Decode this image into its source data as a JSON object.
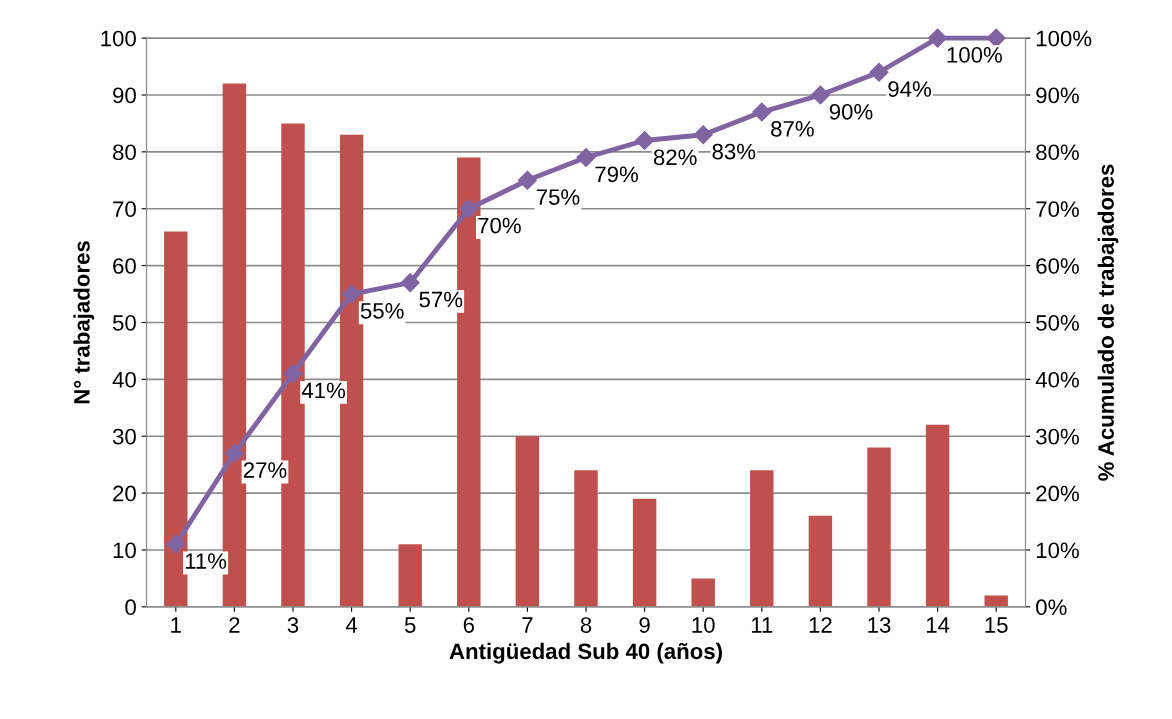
{
  "chart_data": {
    "type": "bar",
    "xlabel": "Antigüedad Sub 40 (años)",
    "ylabel": "N° trabajadores",
    "y2label": "% Acumulado de trabajadores",
    "categories": [
      "1",
      "2",
      "3",
      "4",
      "5",
      "6",
      "7",
      "8",
      "9",
      "10",
      "11",
      "12",
      "13",
      "14",
      "15"
    ],
    "series": [
      {
        "color": "#c0504d",
        "values": [
          66,
          92,
          85,
          83,
          11,
          79,
          30,
          24,
          19,
          5,
          24,
          16,
          28,
          32,
          2
        ]
      },
      {
        "type": "line",
        "axis": "y2",
        "color": "#8064a2",
        "marker": "diamond",
        "values": [
          11,
          27,
          41,
          55,
          57,
          70,
          75,
          79,
          82,
          83,
          87,
          90,
          94,
          100,
          100
        ],
        "value_labels": [
          "11%",
          "27%",
          "41%",
          "55%",
          "57%",
          "70%",
          "75%",
          "79%",
          "82%",
          "83%",
          "87%",
          "90%",
          "94%",
          "100%",
          null
        ]
      }
    ],
    "ylim": [
      0,
      100
    ],
    "yticks": [
      0,
      10,
      20,
      30,
      40,
      50,
      60,
      70,
      80,
      90,
      100
    ],
    "y2lim": [
      0,
      100
    ],
    "y2ticks": [
      {
        "value": 0,
        "label": "0%"
      },
      {
        "value": 10,
        "label": "10%"
      },
      {
        "value": 20,
        "label": "20%"
      },
      {
        "value": 30,
        "label": "30%"
      },
      {
        "value": 40,
        "label": "40%"
      },
      {
        "value": 50,
        "label": "50%"
      },
      {
        "value": 60,
        "label": "60%"
      },
      {
        "value": 70,
        "label": "70%"
      },
      {
        "value": 80,
        "label": "80%"
      },
      {
        "value": 90,
        "label": "90%"
      },
      {
        "value": 100,
        "label": "100%"
      }
    ],
    "grid": "y",
    "legend": false
  }
}
